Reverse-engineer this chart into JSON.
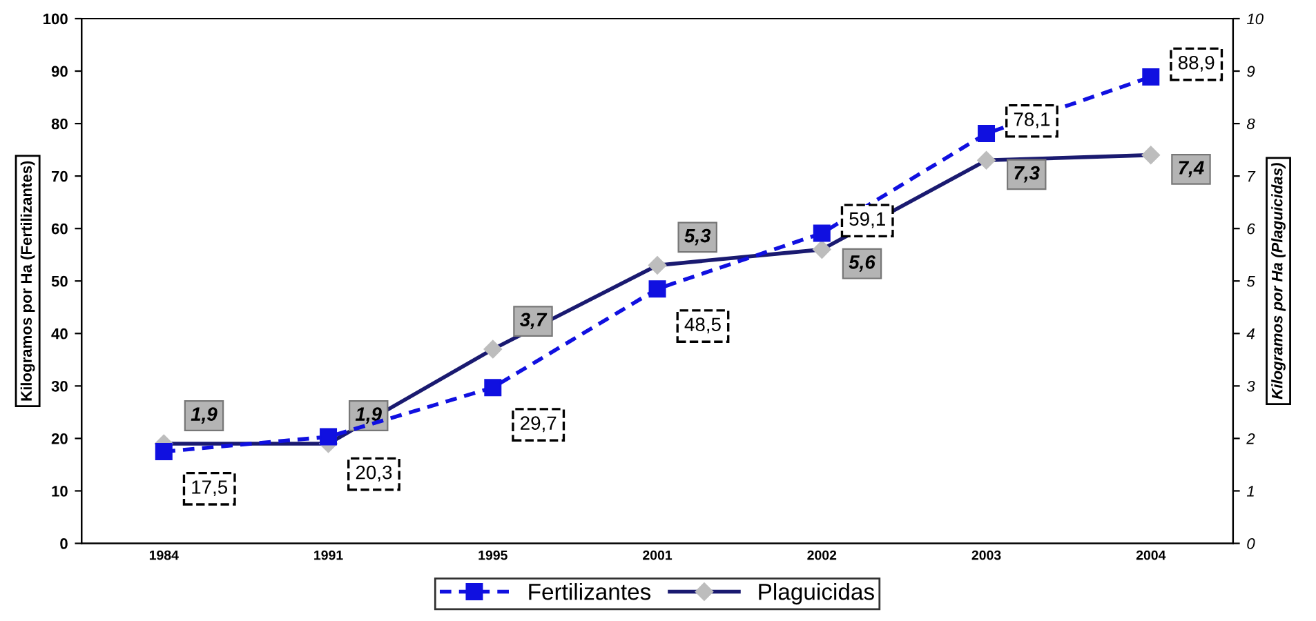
{
  "chart_data": {
    "type": "line",
    "categories": [
      "1984",
      "1991",
      "1995",
      "2001",
      "2002",
      "2003",
      "2004"
    ],
    "ylabel": "Kilogramos por Ha (Fertilizantes)",
    "y2label": "Kilogramos por Ha (Plaguicidas)",
    "ylim": [
      0,
      100
    ],
    "yticks": [
      0,
      10,
      20,
      30,
      40,
      50,
      60,
      70,
      80,
      90,
      100
    ],
    "y2lim": [
      0,
      10
    ],
    "y2ticks": [
      0,
      1,
      2,
      3,
      4,
      5,
      6,
      7,
      8,
      9,
      10
    ],
    "grid": false,
    "legend": "bottom",
    "series": [
      {
        "name": "Fertilizantes",
        "color": "#1010e0",
        "axis": "y",
        "marker": "square",
        "line_style": "dashed",
        "values": [
          17.5,
          20.3,
          29.7,
          48.5,
          59.1,
          78.1,
          88.9
        ],
        "value_labels": [
          "17,5",
          "20,3",
          "29,7",
          "48,5",
          "59,1",
          "78,1",
          "88,9"
        ]
      },
      {
        "name": "Plaguicidas",
        "color": "#1a1a70",
        "axis": "y2",
        "marker": "diamond",
        "line_style": "solid",
        "values": [
          1.9,
          1.9,
          3.7,
          5.3,
          5.6,
          7.3,
          7.4
        ],
        "value_labels": [
          "1,9",
          "1,9",
          "3,7",
          "5,3",
          "5,6",
          "7,3",
          "7,4"
        ]
      }
    ]
  }
}
